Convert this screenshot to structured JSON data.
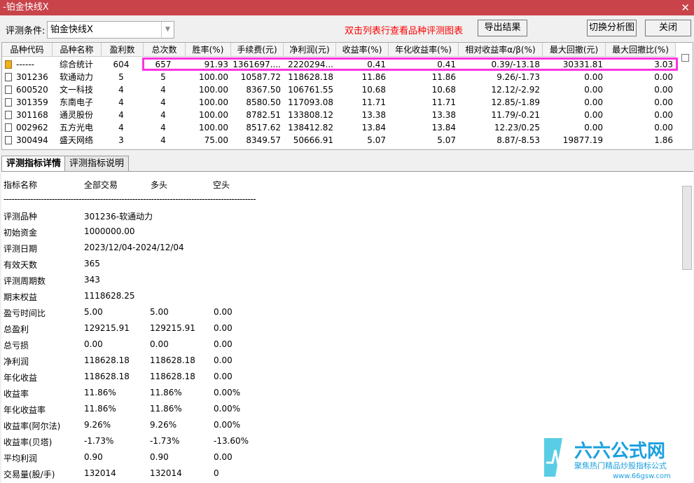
{
  "window": {
    "title": "-铂金快线X"
  },
  "toolbar": {
    "condition_label": "评测条件:",
    "condition_value": "铂金快线X",
    "hint": "双击列表行查看品种评测图表",
    "export_label": "导出结果",
    "switch_label": "切换分析图",
    "close_label": "关闭",
    "hint_color": "#ff0000"
  },
  "table": {
    "columns": [
      "品种代码",
      "品种名称",
      "盈利数",
      "总次数",
      "胜率(%)",
      "手续费(元)",
      "净利润(元)",
      "收益率(%)",
      "年化收益率(%)",
      "相对收益率α/β(%)",
      "最大回撤(元)",
      "最大回撤比(%)"
    ],
    "rows": [
      [
        "------",
        "综合统计",
        "604",
        "657",
        "91.93",
        "1361697....",
        "2220294...",
        "0.41",
        "0.41",
        "0.39/-13.18",
        "30331.81",
        "3.03"
      ],
      [
        "301236",
        "软通动力",
        "5",
        "5",
        "100.00",
        "10587.72",
        "118628.18",
        "11.86",
        "11.86",
        "9.26/-1.73",
        "0.00",
        "0.00"
      ],
      [
        "600520",
        "文一科技",
        "4",
        "4",
        "100.00",
        "8367.50",
        "106761.55",
        "10.68",
        "10.68",
        "12.12/-2.92",
        "0.00",
        "0.00"
      ],
      [
        "301359",
        "东南电子",
        "4",
        "4",
        "100.00",
        "8580.50",
        "117093.08",
        "11.71",
        "11.71",
        "12.85/-1.89",
        "0.00",
        "0.00"
      ],
      [
        "301168",
        "通灵股份",
        "4",
        "4",
        "100.00",
        "8782.51",
        "133808.12",
        "13.38",
        "13.38",
        "11.79/-0.21",
        "0.00",
        "0.00"
      ],
      [
        "002962",
        "五方光电",
        "4",
        "4",
        "100.00",
        "8517.62",
        "138412.82",
        "13.84",
        "13.84",
        "12.23/0.25",
        "0.00",
        "0.00"
      ],
      [
        "300494",
        "盛天网络",
        "3",
        "4",
        "75.00",
        "8349.57",
        "50666.91",
        "5.07",
        "5.07",
        "8.87/-8.53",
        "19877.19",
        "1.86"
      ]
    ]
  },
  "tabs": [
    {
      "label": "评测指标详情",
      "active": true
    },
    {
      "label": "评测指标说明",
      "active": false
    }
  ],
  "detail": {
    "headers": [
      "指标名称",
      "全部交易",
      "多头",
      "空头"
    ],
    "divider": "----------------------------------------------------------------------------------------------",
    "rows": [
      [
        "评测品种",
        "301236-软通动力",
        "",
        ""
      ],
      [
        "初始资金",
        "1000000.00",
        "",
        ""
      ],
      [
        "评测日期",
        "2023/12/04-2024/12/04",
        "",
        ""
      ],
      [
        "有效天数",
        "365",
        "",
        ""
      ],
      [
        "评测周期数",
        "343",
        "",
        ""
      ],
      [
        "期末权益",
        "1118628.25",
        "",
        ""
      ],
      [
        "盈亏时间比",
        "5.00",
        "5.00",
        "0.00"
      ],
      [
        "总盈利",
        "129215.91",
        "129215.91",
        "0.00"
      ],
      [
        "总亏损",
        "0.00",
        "0.00",
        "0.00"
      ],
      [
        "净利润",
        "118628.18",
        "118628.18",
        "0.00"
      ],
      [
        "年化收益",
        "118628.18",
        "118628.18",
        "0.00"
      ],
      [
        "收益率",
        "11.86%",
        "11.86%",
        "0.00%"
      ],
      [
        "年化收益率",
        "11.86%",
        "11.86%",
        "0.00%"
      ],
      [
        "收益率(阿尔法)",
        "9.26%",
        "9.26%",
        "0.00%"
      ],
      [
        "收益率(贝塔)",
        "-1.73%",
        "-1.73%",
        "-13.60%"
      ],
      [
        "平均利润",
        "0.90",
        "0.90",
        "0.00"
      ],
      [
        "交易量(股/手)",
        "132014",
        "132014",
        "0"
      ]
    ]
  },
  "watermark": {
    "brand": "六六公式网",
    "slogan": "聚焦热门精品炒股指标公式",
    "url": "www.66gsw.com"
  }
}
